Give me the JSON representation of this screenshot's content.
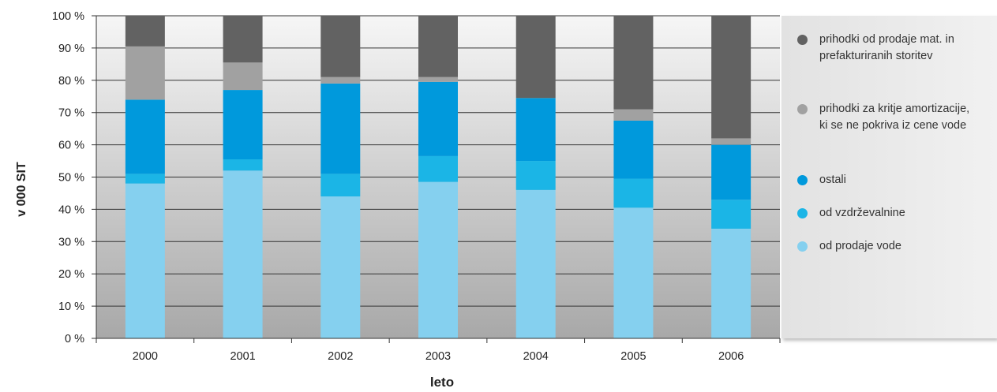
{
  "chart_data": {
    "type": "bar",
    "stacked": true,
    "categories": [
      "2000",
      "2001",
      "2002",
      "2003",
      "2004",
      "2005",
      "2006"
    ],
    "series": [
      {
        "name": "od prodaje vode",
        "color": "#85d0ef",
        "values": [
          48,
          52,
          44,
          48.5,
          46,
          40.5,
          34
        ]
      },
      {
        "name": "od vzdrževalnine",
        "color": "#1bb5e6",
        "values": [
          3,
          3.5,
          7,
          8,
          9,
          9,
          9
        ]
      },
      {
        "name": "ostali",
        "color": "#0099dc",
        "values": [
          23,
          21.5,
          28,
          23,
          19.5,
          18,
          17
        ]
      },
      {
        "name": "prihodki za kritje amortizacije, ki se ne pokriva iz cene vode",
        "color": "#a1a1a1",
        "values": [
          16.5,
          8.5,
          2,
          1.5,
          0,
          3.5,
          2
        ]
      },
      {
        "name": "prihodki od prodaje mat. in prefakturiranih storitev",
        "color": "#626262",
        "values": [
          9.5,
          14.5,
          19,
          19,
          25.5,
          29,
          38
        ]
      }
    ],
    "yticks": [
      "0 %",
      "10 %",
      "20 %",
      "30 %",
      "40 %",
      "50 %",
      "60 %",
      "70 %",
      "80 %",
      "90 %",
      "100 %"
    ],
    "ylim": [
      0,
      100
    ],
    "xlabel": "leto",
    "ylabel": "v 000 SIT",
    "grid": true,
    "legend_position": "right",
    "legend": [
      {
        "label": "prihodki od prodaje mat. in prefakturiranih storitev",
        "color": "#626262"
      },
      {
        "label": "prihodki za kritje amortizacije, ki se ne pokriva iz cene vode",
        "color": "#a1a1a1"
      },
      {
        "label": "ostali",
        "color": "#0099dc"
      },
      {
        "label": "od vzdrževalnine",
        "color": "#1bb5e6"
      },
      {
        "label": "od prodaje vode",
        "color": "#85d0ef"
      }
    ]
  }
}
